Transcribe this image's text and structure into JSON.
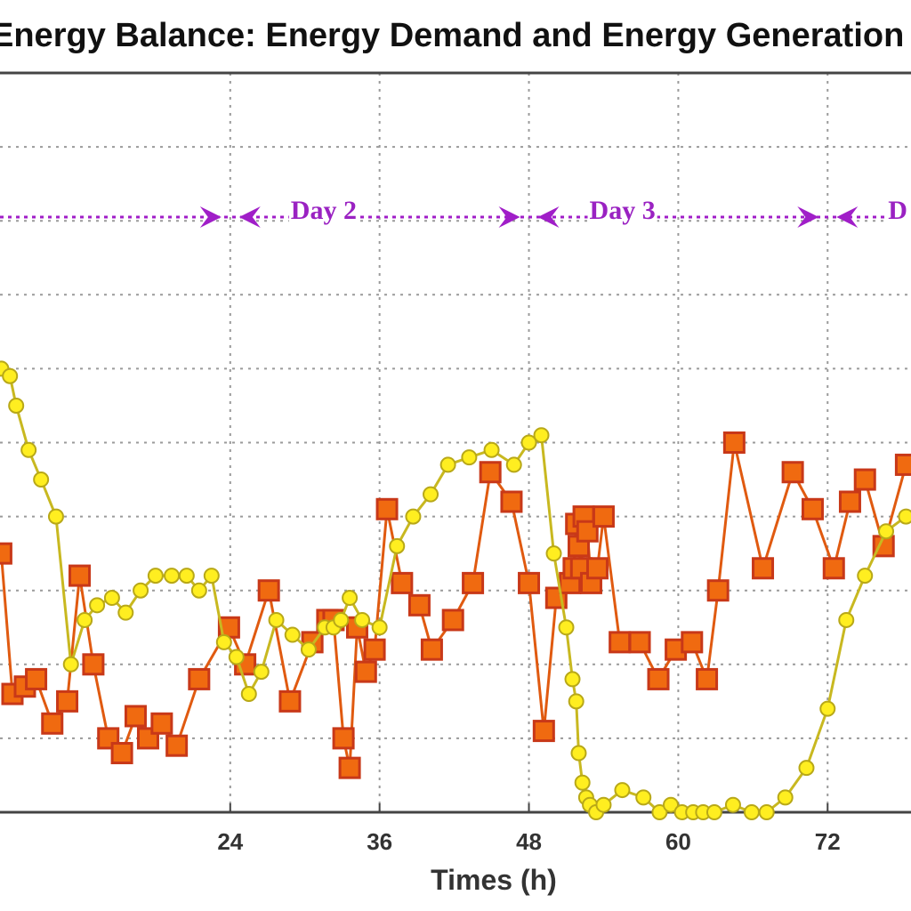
{
  "chart_data": {
    "type": "line",
    "title": "Energy Balance: Energy Demand and Energy Generation",
    "xlabel": "Times (h)",
    "ylabel": "",
    "xlim": [
      5.5,
      78.7
    ],
    "ylim": [
      0,
      100
    ],
    "grid": true,
    "x_ticks": [
      {
        "value": 24,
        "label": "24"
      },
      {
        "value": 36,
        "label": "36"
      },
      {
        "value": 48,
        "label": "48"
      },
      {
        "value": 60,
        "label": "60"
      },
      {
        "value": 72,
        "label": "72"
      }
    ],
    "y_gridlines": [
      10,
      20,
      30,
      40,
      50,
      60,
      70,
      80,
      90
    ],
    "day_markers": [
      {
        "label": "Day 2",
        "start": 24,
        "end": 48
      },
      {
        "label": "Day 3",
        "start": 48,
        "end": 72
      },
      {
        "label": "D",
        "start": 72,
        "end": 80
      }
    ],
    "day_marker_y": 80.5,
    "series": [
      {
        "name": "",
        "color": "#e05a10",
        "marker": "square",
        "marker_fill": "#f06a10",
        "marker_edge": "#c83818",
        "x": [
          5.6,
          6.5,
          7.5,
          8.4,
          9.7,
          10.9,
          11.9,
          13.0,
          14.2,
          15.3,
          16.4,
          17.4,
          18.5,
          19.7,
          21.5,
          23.9,
          25.2,
          27.1,
          28.8,
          30.6,
          31.8,
          32.3,
          33.1,
          33.6,
          34.2,
          34.9,
          35.6,
          36.6,
          37.8,
          39.2,
          40.2,
          41.9,
          43.5,
          44.9,
          46.6,
          48.0,
          49.2,
          50.2,
          51.3,
          51.6,
          51.8,
          52.0,
          52.2,
          52.4,
          52.7,
          53.0,
          53.5,
          54.0,
          55.3,
          56.9,
          58.4,
          59.8,
          61.1,
          62.3,
          63.2,
          64.5,
          66.8,
          69.2,
          70.8,
          72.5,
          73.8,
          75.0,
          76.5,
          78.3
        ],
        "y": [
          35,
          16,
          17,
          18,
          12,
          15,
          32,
          20,
          10,
          8,
          13,
          10,
          12,
          9,
          18,
          25,
          20,
          30,
          15,
          23,
          26,
          26,
          10,
          6,
          25,
          19,
          22,
          41,
          31,
          28,
          22,
          26,
          31,
          46,
          42,
          31,
          11,
          29,
          31,
          33,
          39,
          36,
          33,
          40,
          38,
          31,
          33,
          40,
          23,
          23,
          18,
          22,
          23,
          18,
          30,
          50,
          33,
          46,
          41,
          33,
          42,
          45,
          36,
          47
        ]
      },
      {
        "name": "",
        "color": "#c8b820",
        "marker": "circle",
        "marker_fill": "#ffee20",
        "marker_edge": "#b8a818",
        "x": [
          5.6,
          6.3,
          6.8,
          7.8,
          8.8,
          10.0,
          11.2,
          12.3,
          13.3,
          14.5,
          15.6,
          16.8,
          18.0,
          19.3,
          20.5,
          21.5,
          22.5,
          23.5,
          24.5,
          25.5,
          26.5,
          27.7,
          29.0,
          30.3,
          31.6,
          32.3,
          32.9,
          33.6,
          34.6,
          36.0,
          37.4,
          38.7,
          40.1,
          41.5,
          43.2,
          45.0,
          46.8,
          48.0,
          49.0,
          50.0,
          51.0,
          51.5,
          51.8,
          52.0,
          52.3,
          52.6,
          52.9,
          53.4,
          54.0,
          55.5,
          57.2,
          58.5,
          59.4,
          60.3,
          61.2,
          62.0,
          62.9,
          64.4,
          65.9,
          67.1,
          68.6,
          70.3,
          72.0,
          73.5,
          75.0,
          76.7,
          78.3
        ],
        "y": [
          60,
          59,
          55,
          49,
          45,
          40,
          20,
          26,
          28,
          29,
          27,
          30,
          32,
          32,
          32,
          30,
          32,
          23,
          21,
          16,
          19,
          26,
          24,
          22,
          25,
          25,
          26,
          29,
          26,
          25,
          36,
          40,
          43,
          47,
          48,
          49,
          47,
          50,
          51,
          35,
          25,
          18,
          15,
          8,
          4,
          2,
          1,
          0,
          1,
          3,
          2,
          0,
          1,
          0,
          0,
          0,
          0,
          1,
          0,
          0,
          2,
          6,
          14,
          26,
          32,
          38,
          40
        ]
      }
    ]
  }
}
